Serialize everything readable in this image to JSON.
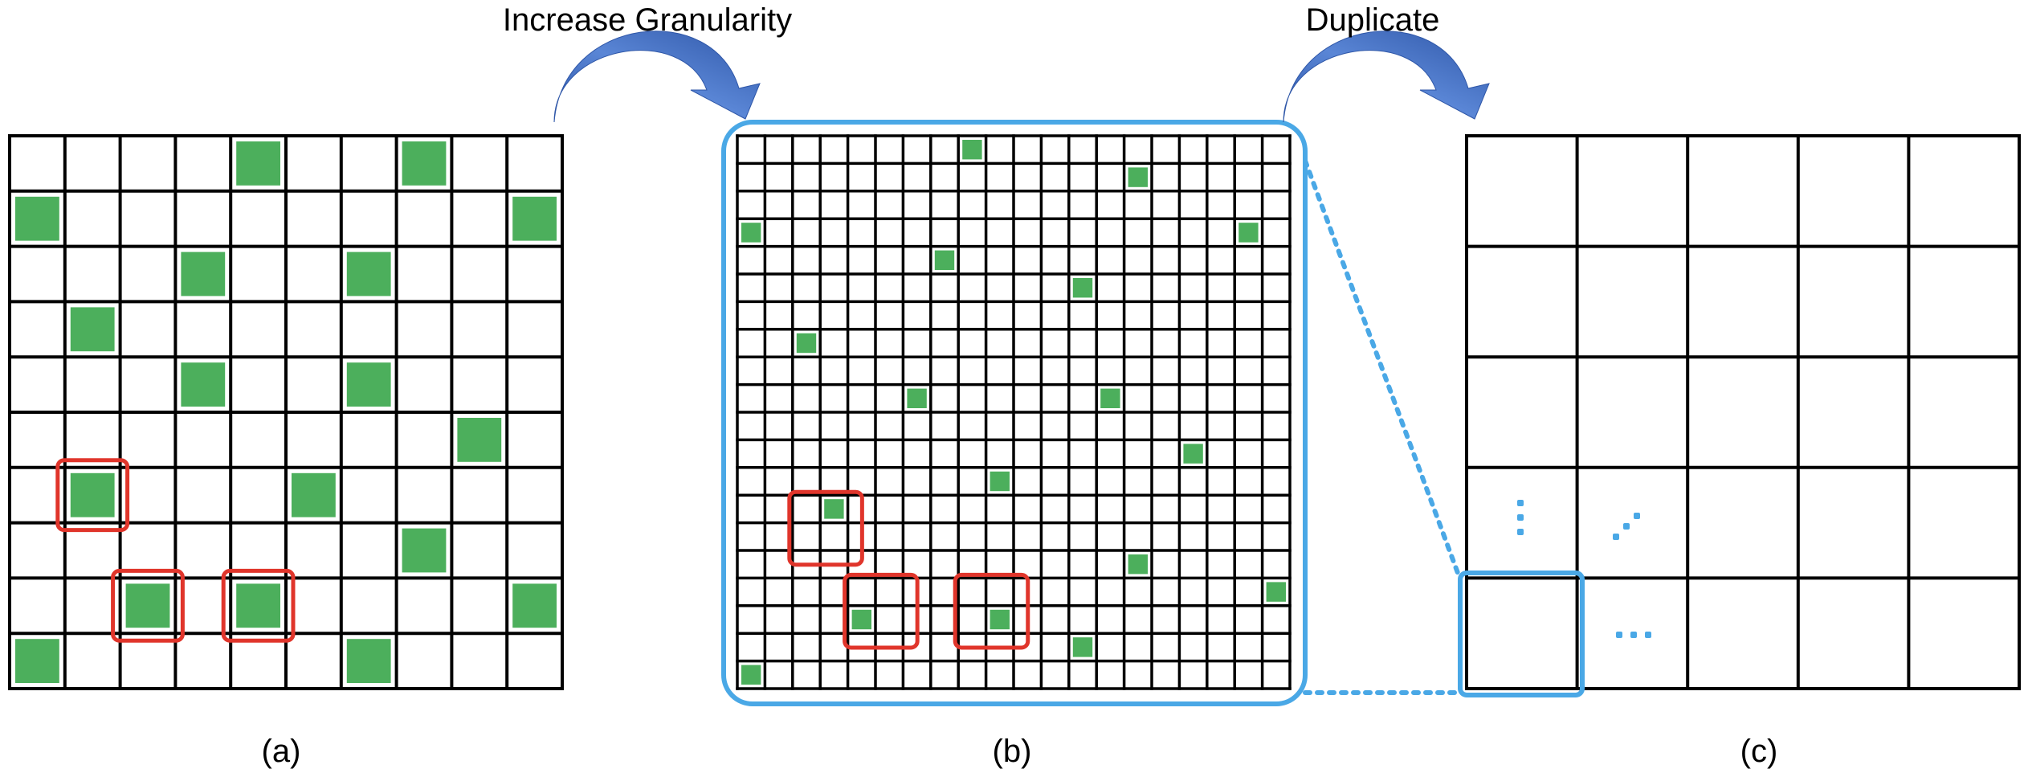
{
  "labels": {
    "arrow1": "Increase Granularity",
    "arrow2": "Duplicate",
    "panel_a": "(a)",
    "panel_b": "(b)",
    "panel_c": "(c)"
  },
  "colors": {
    "grid": "#000000",
    "fill": "#4caf5c",
    "red": "#e0352b",
    "blue": "#4aa8e6",
    "arrow": "#4a72c6"
  },
  "grid_a": {
    "rows": 10,
    "cols": 10,
    "green": [
      [
        0,
        4
      ],
      [
        0,
        7
      ],
      [
        1,
        0
      ],
      [
        1,
        9
      ],
      [
        2,
        3
      ],
      [
        2,
        6
      ],
      [
        3,
        1
      ],
      [
        4,
        3
      ],
      [
        4,
        6
      ],
      [
        5,
        8
      ],
      [
        6,
        1
      ],
      [
        6,
        5
      ],
      [
        7,
        7
      ],
      [
        8,
        2
      ],
      [
        8,
        4
      ],
      [
        8,
        9
      ],
      [
        9,
        0
      ],
      [
        9,
        6
      ]
    ],
    "red": [
      [
        6,
        1
      ],
      [
        8,
        2
      ],
      [
        8,
        4
      ]
    ]
  },
  "grid_b": {
    "rows": 20,
    "cols": 20,
    "green": [
      [
        0,
        8
      ],
      [
        1,
        14
      ],
      [
        3,
        0
      ],
      [
        3,
        18
      ],
      [
        4,
        7
      ],
      [
        5,
        12
      ],
      [
        7,
        2
      ],
      [
        9,
        6
      ],
      [
        9,
        13
      ],
      [
        11,
        16
      ],
      [
        12,
        9
      ],
      [
        13,
        3
      ],
      [
        15,
        14
      ],
      [
        16,
        19
      ],
      [
        17,
        4
      ],
      [
        17,
        9
      ],
      [
        18,
        12
      ],
      [
        19,
        0
      ]
    ],
    "red": [
      [
        13,
        2
      ],
      [
        16,
        4
      ],
      [
        16,
        8
      ]
    ]
  },
  "grid_c": {
    "rows": 5,
    "cols": 5
  }
}
